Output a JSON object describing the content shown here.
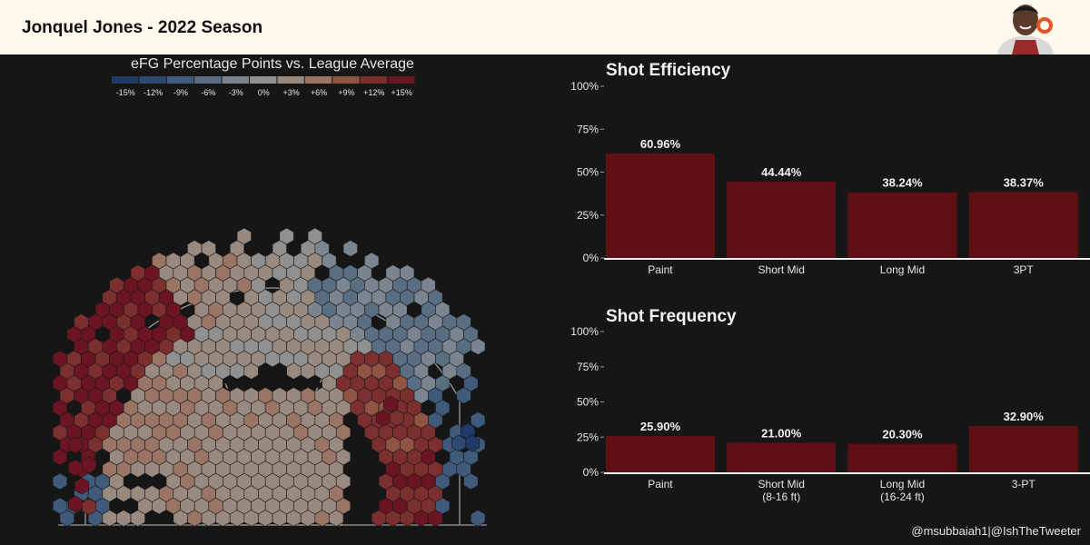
{
  "header": {
    "title": "Jonquel Jones - 2022 Season"
  },
  "shot_map": {
    "legend_title": "eFG Percentage Points vs. League Average",
    "legend": [
      {
        "label": "-15%",
        "color": "#1f3a66"
      },
      {
        "label": "-12%",
        "color": "#2e4a70"
      },
      {
        "label": "-9%",
        "color": "#3f5a7a"
      },
      {
        "label": "-6%",
        "color": "#5a6e82"
      },
      {
        "label": "-3%",
        "color": "#7a858f"
      },
      {
        "label": "0%",
        "color": "#909090"
      },
      {
        "label": "+3%",
        "color": "#998a80"
      },
      {
        "label": "+6%",
        "color": "#9a7464"
      },
      {
        "label": "+9%",
        "color": "#8f5444"
      },
      {
        "label": "+12%",
        "color": "#7c2f2f"
      },
      {
        "label": "+15%",
        "color": "#6c1522"
      }
    ]
  },
  "chart_data": [
    {
      "type": "bar",
      "title": "Shot Efficiency",
      "categories": [
        "Paint",
        "Short Mid",
        "Long Mid",
        "3PT"
      ],
      "values": [
        60.96,
        44.44,
        38.24,
        38.37
      ],
      "data_labels": [
        "60.96%",
        "44.44%",
        "38.24%",
        "38.37%"
      ],
      "yticks": [
        "0%",
        "25%",
        "50%",
        "75%",
        "100%"
      ],
      "ylim": [
        0,
        100
      ],
      "bar_color": "#5f1014"
    },
    {
      "type": "bar",
      "title": "Shot Frequency",
      "categories": [
        "Paint",
        "Short Mid\n(8-16 ft)",
        "Long Mid\n(16-24 ft)",
        "3-PT"
      ],
      "values": [
        25.9,
        21.0,
        20.3,
        32.9
      ],
      "data_labels": [
        "25.90%",
        "21.00%",
        "20.30%",
        "32.90%"
      ],
      "yticks": [
        "0%",
        "25%",
        "50%",
        "75%",
        "100%"
      ],
      "ylim": [
        0,
        100
      ],
      "bar_color": "#5f1014"
    }
  ],
  "footer": {
    "credit": "@msubbaiah1|@IshTheTweeter"
  }
}
